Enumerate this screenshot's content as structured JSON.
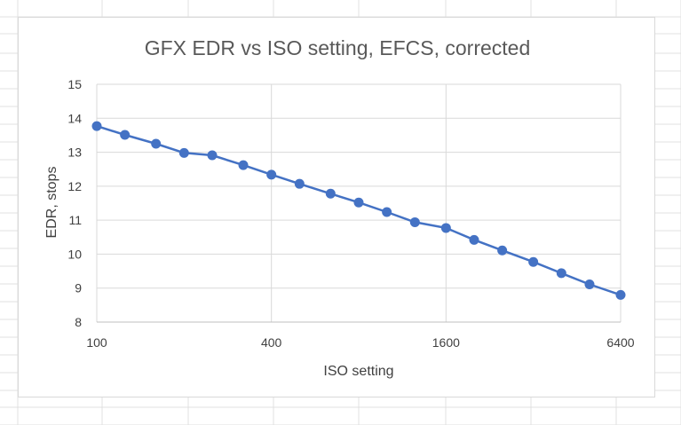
{
  "chart_data": {
    "type": "line",
    "title": "GFX EDR vs ISO setting, EFCS, corrected",
    "xlabel": "ISO setting",
    "ylabel": "EDR, stops",
    "x_scale": "log2",
    "xlim": [
      100,
      6400
    ],
    "ylim": [
      8,
      15
    ],
    "x_ticks": [
      "100",
      "400",
      "1600",
      "6400"
    ],
    "y_ticks": [
      "8",
      "9",
      "10",
      "11",
      "12",
      "13",
      "14",
      "15"
    ],
    "grid": "on",
    "legend": "none",
    "series": [
      {
        "x": [
          100,
          125,
          160,
          200,
          250,
          320,
          400,
          500,
          640,
          800,
          1000,
          1250,
          1600,
          2000,
          2500,
          3200,
          4000,
          5000,
          6400
        ],
        "y": [
          13.77,
          13.51,
          13.25,
          12.98,
          12.91,
          12.62,
          12.34,
          12.07,
          11.78,
          11.52,
          11.24,
          10.94,
          10.77,
          10.42,
          10.11,
          9.77,
          9.44,
          9.11,
          8.8
        ],
        "color": "#4472c4"
      }
    ]
  }
}
